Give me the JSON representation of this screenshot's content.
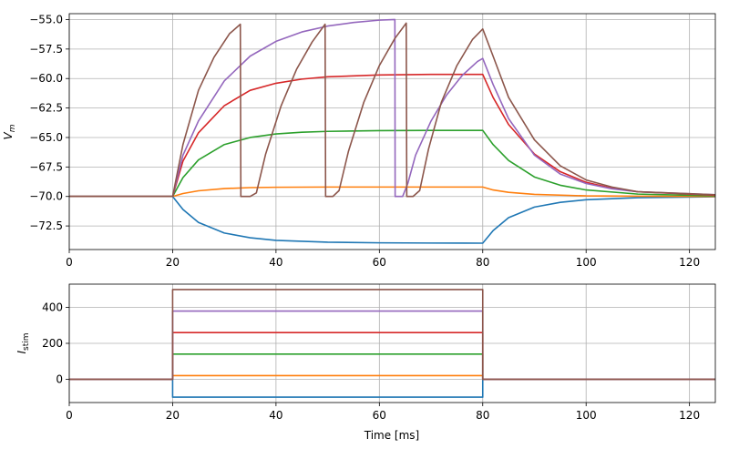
{
  "chart_data": [
    {
      "type": "line",
      "xlim": [
        0,
        125
      ],
      "ylim": [
        -74.5,
        -54.5
      ],
      "grid": true,
      "legend": "none",
      "xticks": [
        0,
        20,
        40,
        60,
        80,
        100,
        120
      ],
      "xtick_labels": [
        "0",
        "20",
        "40",
        "60",
        "80",
        "100",
        "120"
      ],
      "yticks": [
        -72.5,
        -70,
        -67.5,
        -65,
        -62.5,
        -60,
        -57.5,
        -55
      ],
      "ytick_labels": [
        "−72.5",
        "−70.0",
        "−67.5",
        "−65.0",
        "−62.5",
        "−60.0",
        "−57.5",
        "−55.0"
      ],
      "ylabel_main": "V",
      "ylabel_sub": "m",
      "xlabel": "",
      "series": [
        {
          "color": "#1f77b4",
          "x": [
            0,
            20,
            22,
            25,
            30,
            35,
            40,
            50,
            60,
            70,
            80,
            82,
            85,
            90,
            95,
            100,
            110,
            125
          ],
          "values": [
            -70,
            -70,
            -71.1,
            -72.2,
            -73.1,
            -73.5,
            -73.72,
            -73.88,
            -73.93,
            -73.95,
            -73.96,
            -72.9,
            -71.8,
            -70.9,
            -70.5,
            -70.28,
            -70.1,
            -70.03
          ]
        },
        {
          "color": "#ff7f0e",
          "x": [
            0,
            20,
            22,
            25,
            30,
            35,
            40,
            50,
            60,
            80,
            82,
            85,
            90,
            100,
            110,
            125
          ],
          "values": [
            -70,
            -70,
            -69.75,
            -69.52,
            -69.33,
            -69.25,
            -69.22,
            -69.2,
            -69.2,
            -69.2,
            -69.45,
            -69.65,
            -69.82,
            -69.95,
            -69.98,
            -70
          ]
        },
        {
          "color": "#2ca02c",
          "x": [
            0,
            20,
            22,
            25,
            30,
            35,
            40,
            45,
            50,
            60,
            70,
            80,
            82,
            85,
            90,
            95,
            100,
            110,
            125
          ],
          "values": [
            -70,
            -70,
            -68.4,
            -66.9,
            -65.6,
            -65.0,
            -64.7,
            -64.55,
            -64.48,
            -64.42,
            -64.4,
            -64.4,
            -65.6,
            -66.95,
            -68.35,
            -69.05,
            -69.45,
            -69.8,
            -69.95
          ]
        },
        {
          "color": "#d62728",
          "x": [
            0,
            20,
            22,
            25,
            30,
            35,
            40,
            45,
            50,
            60,
            70,
            80,
            82,
            85,
            90,
            95,
            100,
            105,
            110,
            125
          ],
          "values": [
            -70,
            -70,
            -67.0,
            -64.6,
            -62.3,
            -61.0,
            -60.4,
            -60.05,
            -59.85,
            -59.7,
            -59.65,
            -59.65,
            -61.6,
            -63.9,
            -66.4,
            -67.9,
            -68.8,
            -69.3,
            -69.6,
            -69.9
          ]
        },
        {
          "color": "#9467bd",
          "x": [
            0,
            20,
            22,
            25,
            30,
            35,
            40,
            45,
            50,
            55,
            60,
            63,
            63.05,
            64.5,
            65.5,
            67,
            70,
            73,
            76,
            79,
            80,
            82,
            85,
            90,
            95,
            100,
            105,
            110,
            125
          ],
          "values": [
            -70,
            -70,
            -66.5,
            -63.6,
            -60.2,
            -58.1,
            -56.85,
            -56.05,
            -55.55,
            -55.25,
            -55.05,
            -55.0,
            -70.0,
            -70.0,
            -68.9,
            -66.5,
            -63.6,
            -61.4,
            -59.75,
            -58.55,
            -58.3,
            -60.5,
            -63.4,
            -66.5,
            -68.1,
            -68.9,
            -69.35,
            -69.6,
            -69.85
          ]
        },
        {
          "color": "#8c564b",
          "x": [
            0,
            20,
            22,
            25,
            28,
            31,
            33.1,
            33.2,
            35,
            36.2,
            38,
            41,
            44,
            47,
            49.5,
            49.6,
            51,
            52.2,
            54,
            57,
            60,
            63,
            65.2,
            65.3,
            66.5,
            67.8,
            69.5,
            72,
            75,
            78,
            80,
            82,
            85,
            90,
            95,
            100,
            105,
            110,
            125
          ],
          "values": [
            -70,
            -70,
            -65.6,
            -61.0,
            -58.2,
            -56.2,
            -55.4,
            -70.0,
            -70.0,
            -69.7,
            -66.4,
            -62.3,
            -59.2,
            -56.9,
            -55.4,
            -70.0,
            -70.0,
            -69.5,
            -66.2,
            -62.0,
            -58.9,
            -56.6,
            -55.3,
            -70.0,
            -70.0,
            -69.5,
            -66.0,
            -62.0,
            -58.9,
            -56.7,
            -55.8,
            -58.1,
            -61.6,
            -65.2,
            -67.4,
            -68.6,
            -69.2,
            -69.6,
            -69.85
          ]
        }
      ]
    },
    {
      "type": "line",
      "xlim": [
        0,
        125
      ],
      "ylim": [
        -130,
        530
      ],
      "grid": true,
      "legend": "none",
      "xticks": [
        0,
        20,
        40,
        60,
        80,
        100,
        120
      ],
      "xtick_labels": [
        "0",
        "20",
        "40",
        "60",
        "80",
        "100",
        "120"
      ],
      "yticks": [
        0,
        200,
        400
      ],
      "ytick_labels": [
        "0",
        "200",
        "400"
      ],
      "ylabel_main": "I",
      "ylabel_sub": "stim",
      "xlabel": "Time [ms]",
      "series": [
        {
          "color": "#1f77b4",
          "x": [
            0,
            20,
            20,
            80,
            80,
            125
          ],
          "values": [
            0,
            0,
            -100,
            -100,
            0,
            0
          ]
        },
        {
          "color": "#ff7f0e",
          "x": [
            0,
            20,
            20,
            80,
            80,
            125
          ],
          "values": [
            0,
            0,
            20,
            20,
            0,
            0
          ]
        },
        {
          "color": "#2ca02c",
          "x": [
            0,
            20,
            20,
            80,
            80,
            125
          ],
          "values": [
            0,
            0,
            140,
            140,
            0,
            0
          ]
        },
        {
          "color": "#d62728",
          "x": [
            0,
            20,
            20,
            80,
            80,
            125
          ],
          "values": [
            0,
            0,
            260,
            260,
            0,
            0
          ]
        },
        {
          "color": "#9467bd",
          "x": [
            0,
            20,
            20,
            80,
            80,
            125
          ],
          "values": [
            0,
            0,
            380,
            380,
            0,
            0
          ]
        },
        {
          "color": "#8c564b",
          "x": [
            0,
            20,
            20,
            80,
            80,
            125
          ],
          "values": [
            0,
            0,
            500,
            500,
            0,
            0
          ]
        }
      ]
    }
  ]
}
